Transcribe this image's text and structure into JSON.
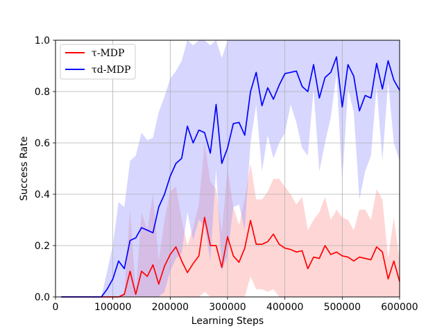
{
  "chart_data": {
    "type": "line",
    "title": "",
    "xlabel": "Learning Steps",
    "ylabel": "Success Rate",
    "xlim": [
      0,
      600000
    ],
    "ylim": [
      0,
      1.0
    ],
    "grid": true,
    "legend_placement": "top-left",
    "x_ticks": [
      0,
      100000,
      200000,
      300000,
      400000,
      500000,
      600000
    ],
    "x_tick_labels": [
      "0",
      "100000",
      "200000",
      "300000",
      "400000",
      "500000",
      "600000"
    ],
    "y_ticks": [
      0,
      0.2,
      0.4,
      0.6,
      0.8,
      1.0
    ],
    "y_tick_labels": [
      "0.0",
      "0.2",
      "0.4",
      "0.6",
      "0.8",
      "1.0"
    ],
    "x": [
      10000,
      20000,
      30000,
      40000,
      50000,
      60000,
      70000,
      80000,
      90000,
      100000,
      110000,
      120000,
      130000,
      140000,
      150000,
      160000,
      170000,
      180000,
      190000,
      200000,
      210000,
      220000,
      230000,
      240000,
      250000,
      260000,
      270000,
      280000,
      290000,
      300000,
      310000,
      320000,
      330000,
      340000,
      350000,
      360000,
      370000,
      380000,
      390000,
      400000,
      410000,
      420000,
      430000,
      440000,
      450000,
      460000,
      470000,
      480000,
      490000,
      500000,
      510000,
      520000,
      530000,
      540000,
      550000,
      560000,
      570000,
      580000,
      590000,
      600000
    ],
    "series": [
      {
        "name": "τ-MDP",
        "color": "#ff0000",
        "band_color": "#ff9999",
        "values": [
          0,
          0,
          0,
          0,
          0,
          0,
          0,
          0,
          0,
          0,
          0,
          0.01,
          0.1,
          0.01,
          0.1,
          0.08,
          0.125,
          0.05,
          0.12,
          0.165,
          0.195,
          0.14,
          0.095,
          0.13,
          0.16,
          0.31,
          0.2,
          0.2,
          0.115,
          0.235,
          0.16,
          0.135,
          0.19,
          0.298,
          0.205,
          0.205,
          0.215,
          0.245,
          0.205,
          0.19,
          0.185,
          0.175,
          0.18,
          0.11,
          0.155,
          0.15,
          0.2,
          0.165,
          0.175,
          0.16,
          0.155,
          0.14,
          0.155,
          0.15,
          0.145,
          0.195,
          0.175,
          0.07,
          0.14,
          0.06
        ],
        "upper": [
          0,
          0,
          0,
          0,
          0,
          0,
          0,
          0,
          0,
          0,
          0,
          0.02,
          0.34,
          0.02,
          0.33,
          0.26,
          0.4,
          0.14,
          0.3,
          0.41,
          0.43,
          0.3,
          0.2,
          0.27,
          0.36,
          0.6,
          0.45,
          0.42,
          0.25,
          0.5,
          0.35,
          0.28,
          0.38,
          0.52,
          0.38,
          0.38,
          0.41,
          0.46,
          0.46,
          0.43,
          0.4,
          0.36,
          0.39,
          0.26,
          0.3,
          0.33,
          0.39,
          0.3,
          0.34,
          0.31,
          0.3,
          0.26,
          0.34,
          0.34,
          0.3,
          0.42,
          0.38,
          0.15,
          0.31,
          0.14
        ],
        "lower": [
          0,
          0,
          0,
          0,
          0,
          0,
          0,
          0,
          0,
          0,
          0,
          0,
          0,
          0,
          0,
          0,
          0,
          0,
          0,
          0,
          0,
          0,
          0,
          0,
          0,
          0.02,
          0,
          0,
          0,
          0,
          0,
          0,
          0,
          0.08,
          0.03,
          0.03,
          0.02,
          0.03,
          0,
          0,
          0,
          0,
          0,
          0,
          0,
          0,
          0,
          0,
          0,
          0,
          0,
          0,
          0,
          0,
          0,
          0,
          0,
          0,
          0,
          0
        ]
      },
      {
        "name": "τd-MDP",
        "color": "#0000ff",
        "band_color": "#9999ff",
        "values": [
          0,
          0,
          0,
          0,
          0,
          0,
          0,
          0,
          0.03,
          0.07,
          0.14,
          0.11,
          0.22,
          0.23,
          0.27,
          0.26,
          0.25,
          0.35,
          0.4,
          0.47,
          0.52,
          0.54,
          0.665,
          0.6,
          0.65,
          0.64,
          0.56,
          0.75,
          0.52,
          0.58,
          0.675,
          0.68,
          0.63,
          0.8,
          0.875,
          0.745,
          0.815,
          0.77,
          0.825,
          0.87,
          0.875,
          0.88,
          0.82,
          0.8,
          0.905,
          0.775,
          0.855,
          0.875,
          0.935,
          0.74,
          0.905,
          0.86,
          0.725,
          0.785,
          0.775,
          0.91,
          0.81,
          0.92,
          0.845,
          0.805
        ],
        "upper": [
          0,
          0,
          0,
          0,
          0,
          0,
          0,
          0,
          0.1,
          0.2,
          0.37,
          0.35,
          0.53,
          0.55,
          0.64,
          0.61,
          0.62,
          0.72,
          0.78,
          0.85,
          0.88,
          0.92,
          1.0,
          0.98,
          1.0,
          1.0,
          0.98,
          1.0,
          0.93,
          1.0,
          1.0,
          1.0,
          1.0,
          1.0,
          1.0,
          1.0,
          1.0,
          1.0,
          1.0,
          1.0,
          1.0,
          1.0,
          1.0,
          1.0,
          1.0,
          1.0,
          1.0,
          1.0,
          1.0,
          1.0,
          1.0,
          1.0,
          1.0,
          1.0,
          1.0,
          1.0,
          1.0,
          1.0,
          1.0,
          1.0
        ],
        "lower": [
          0,
          0,
          0,
          0,
          0,
          0,
          0,
          0,
          0,
          0,
          0,
          0,
          0,
          0,
          0,
          0,
          0,
          0,
          0.02,
          0.1,
          0.15,
          0.17,
          0.33,
          0.22,
          0.3,
          0.28,
          0.14,
          0.5,
          0.1,
          0.16,
          0.35,
          0.36,
          0.26,
          0.6,
          0.75,
          0.49,
          0.63,
          0.54,
          0.6,
          0.64,
          0.75,
          0.68,
          0.58,
          0.55,
          0.81,
          0.49,
          0.6,
          0.7,
          0.87,
          0.45,
          0.81,
          0.72,
          0.38,
          0.49,
          0.55,
          0.82,
          0.53,
          0.84,
          0.6,
          0.53
        ]
      }
    ]
  }
}
